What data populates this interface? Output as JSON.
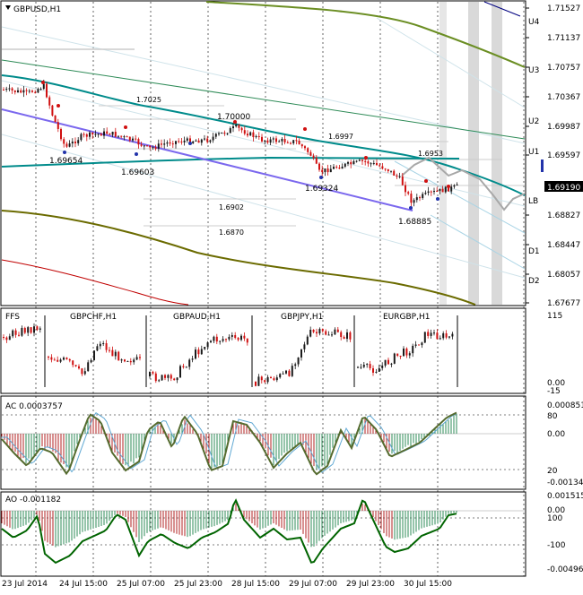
{
  "main": {
    "symbol": "GBPUSD,H1",
    "price_now": "1.69190",
    "price_ticks": [
      "1.71527",
      "1.71137",
      "1.70757",
      "1.70367",
      "1.69987",
      "1.69597",
      "1.69190",
      "1.68827",
      "1.68447",
      "1.68057",
      "1.67677"
    ],
    "level_labels": [
      "U4",
      "U3",
      "U2",
      "U1",
      "LB",
      "D1",
      "D2"
    ],
    "price_annotations": [
      "1.7025",
      "1.70000",
      "1.6997",
      "1.69654",
      "1.69603",
      "1.6953",
      "1.69324",
      "1.6902",
      "1.6870",
      "1.68885"
    ]
  },
  "sub1": {
    "title": "FFS",
    "pairs": [
      "GBPCHF,H1",
      "GBPAUD,H1",
      "GBPJPY,H1",
      "EURGBP,H1"
    ],
    "ticks": [
      "115",
      "0.00",
      "-15"
    ]
  },
  "ac": {
    "title": "AC 0.0003757",
    "ticks": [
      "0.000851",
      "80",
      "0.00",
      "20",
      "-0.001346"
    ]
  },
  "ao": {
    "title": "AO -0.001182",
    "ticks": [
      "0.001515",
      "100",
      "0.00",
      "-100",
      "-0.004966"
    ]
  },
  "time_axis": [
    "23 Jul 2014",
    "24 Jul 15:00",
    "25 Jul 07:00",
    "25 Jul 23:00",
    "28 Jul 15:00",
    "29 Jul 07:00",
    "29 Jul 23:00",
    "30 Jul 15:00"
  ],
  "colors": {
    "up_candle": "#1a1a1a",
    "down_candle": "#d01010",
    "teal": "#008b8b",
    "olive": "#6b6b00",
    "purple": "#7b68ee",
    "green_line": "#2e8b57",
    "red_line": "#b22222",
    "ao_line": "#006400"
  }
}
